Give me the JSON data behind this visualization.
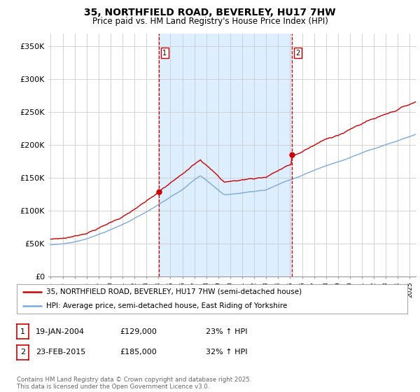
{
  "title": "35, NORTHFIELD ROAD, BEVERLEY, HU17 7HW",
  "subtitle": "Price paid vs. HM Land Registry's House Price Index (HPI)",
  "ylabel_ticks": [
    "£0",
    "£50K",
    "£100K",
    "£150K",
    "£200K",
    "£250K",
    "£300K",
    "£350K"
  ],
  "ytick_values": [
    0,
    50000,
    100000,
    150000,
    200000,
    250000,
    300000,
    350000
  ],
  "ylim": [
    0,
    370000
  ],
  "xlim_start": 1994.8,
  "xlim_end": 2025.5,
  "purchase1_date": 2004.05,
  "purchase1_price": 129000,
  "purchase1_label": "1",
  "purchase2_date": 2015.15,
  "purchase2_price": 185000,
  "purchase2_label": "2",
  "line_color_property": "#cc0000",
  "line_color_hpi": "#7aaadd",
  "vline_color": "#cc0000",
  "shade_color": "#ddeeff",
  "grid_color": "#cccccc",
  "background_color": "#ffffff",
  "legend_line1": "35, NORTHFIELD ROAD, BEVERLEY, HU17 7HW (semi-detached house)",
  "legend_line2": "HPI: Average price, semi-detached house, East Riding of Yorkshire",
  "annotation1_date": "19-JAN-2004",
  "annotation1_price": "£129,000",
  "annotation1_hpi": "23% ↑ HPI",
  "annotation2_date": "23-FEB-2015",
  "annotation2_price": "£185,000",
  "annotation2_hpi": "32% ↑ HPI",
  "footer": "Contains HM Land Registry data © Crown copyright and database right 2025.\nThis data is licensed under the Open Government Licence v3.0."
}
